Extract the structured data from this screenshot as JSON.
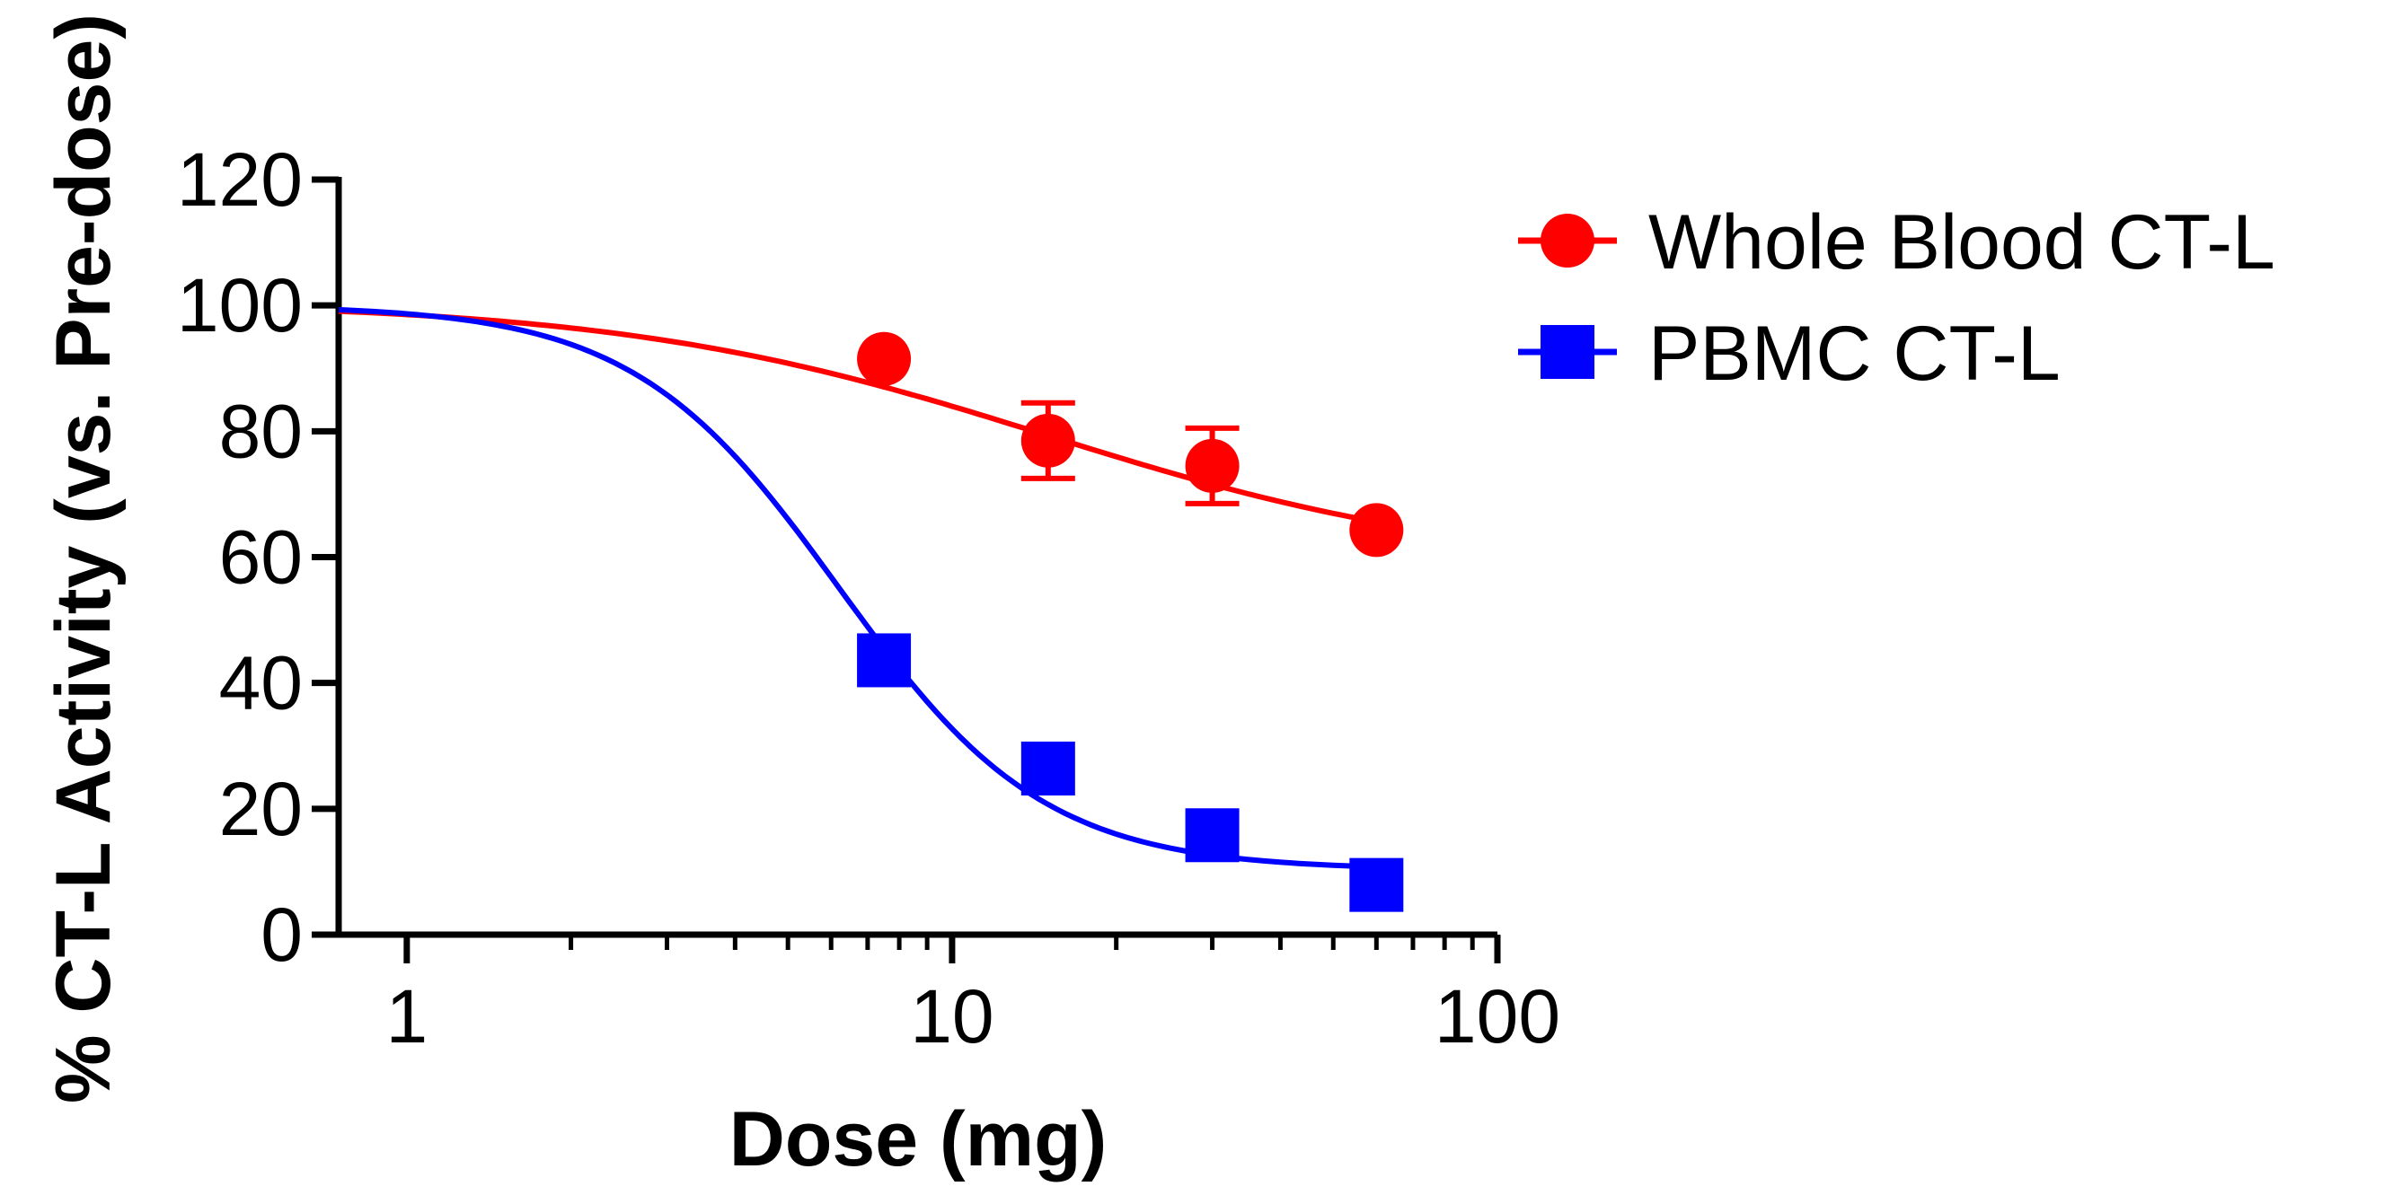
{
  "chart_data": {
    "type": "scatter",
    "title": "",
    "xlabel": "Dose (mg)",
    "ylabel": "% CT-L Activity (vs. Pre-dose)",
    "xscale": "log",
    "xlim": [
      0.75,
      100
    ],
    "ylim": [
      0,
      120
    ],
    "x_ticks": [
      1,
      10,
      100
    ],
    "x_tick_labels": [
      "1",
      "10",
      "100"
    ],
    "y_ticks": [
      0,
      20,
      40,
      60,
      80,
      100,
      120
    ],
    "y_tick_labels": [
      "0",
      "20",
      "40",
      "60",
      "80",
      "100",
      "120"
    ],
    "grid": false,
    "legend_position": "top-right outside",
    "series": [
      {
        "name": "Whole Blood CT-L",
        "color": "#ff0000",
        "marker": "circle",
        "x": [
          7.5,
          15,
          30,
          60
        ],
        "y": [
          91.5,
          78.5,
          74.5,
          64.3
        ],
        "error": [
          0,
          6,
          6,
          0
        ],
        "fit": {
          "top": 100.6,
          "bottom": 58,
          "ec50": 15,
          "hill": 1.1
        }
      },
      {
        "name": "PBMC CT-L",
        "color": "#0000ff",
        "marker": "square",
        "x": [
          7.5,
          15,
          30,
          60
        ],
        "y": [
          43.6,
          26.4,
          15.8,
          7.9
        ],
        "error": [
          0,
          0,
          0,
          0
        ],
        "fit": {
          "top": 100,
          "bottom": 10.3,
          "ec50": 6.2,
          "hill": 2.3
        }
      }
    ]
  }
}
